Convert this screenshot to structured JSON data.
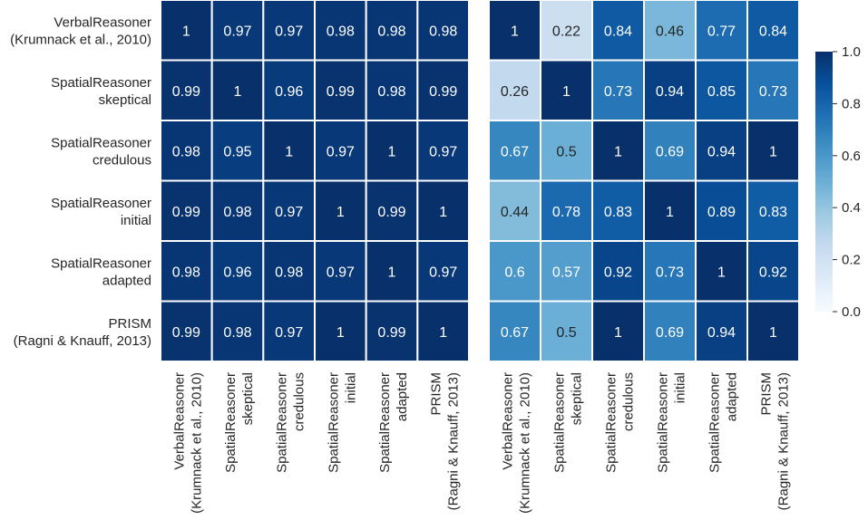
{
  "chart_data": [
    {
      "type": "heatmap",
      "title": "",
      "row_labels": [
        [
          "VerbalReasoner",
          "(Krumnack et al., 2010)"
        ],
        [
          "SpatialReasoner",
          "skeptical"
        ],
        [
          "SpatialReasoner",
          "credulous"
        ],
        [
          "SpatialReasoner",
          "initial"
        ],
        [
          "SpatialReasoner",
          "adapted"
        ],
        [
          "PRISM",
          "(Ragni & Knauff, 2013)"
        ]
      ],
      "col_labels": [
        [
          "VerbalReasoner",
          "(Krumnack et al., 2010)"
        ],
        [
          "SpatialReasoner",
          "skeptical"
        ],
        [
          "SpatialReasoner",
          "credulous"
        ],
        [
          "SpatialReasoner",
          "initial"
        ],
        [
          "SpatialReasoner",
          "adapted"
        ],
        [
          "PRISM",
          "(Ragni & Knauff, 2013)"
        ]
      ],
      "values": [
        [
          1,
          0.97,
          0.97,
          0.98,
          0.98,
          0.98
        ],
        [
          0.99,
          1,
          0.96,
          0.99,
          0.98,
          0.99
        ],
        [
          0.98,
          0.95,
          1,
          0.97,
          1,
          0.97
        ],
        [
          0.99,
          0.98,
          0.97,
          1,
          0.99,
          1
        ],
        [
          0.98,
          0.96,
          0.98,
          0.97,
          1,
          0.97
        ],
        [
          0.99,
          0.98,
          0.97,
          1,
          0.99,
          1
        ]
      ],
      "value_range": [
        0,
        1
      ]
    },
    {
      "type": "heatmap",
      "title": "",
      "row_labels": [],
      "col_labels": [
        [
          "VerbalReasoner",
          "(Krumnack et al., 2010)"
        ],
        [
          "SpatialReasoner",
          "skeptical"
        ],
        [
          "SpatialReasoner",
          "credulous"
        ],
        [
          "SpatialReasoner",
          "initial"
        ],
        [
          "SpatialReasoner",
          "adapted"
        ],
        [
          "PRISM",
          "(Ragni & Knauff, 2013)"
        ]
      ],
      "values": [
        [
          1,
          0.22,
          0.84,
          0.46,
          0.77,
          0.84
        ],
        [
          0.26,
          1,
          0.73,
          0.94,
          0.85,
          0.73
        ],
        [
          0.67,
          0.5,
          1,
          0.69,
          0.94,
          1
        ],
        [
          0.44,
          0.78,
          0.83,
          1,
          0.89,
          0.83
        ],
        [
          0.6,
          0.57,
          0.92,
          0.73,
          1,
          0.92
        ],
        [
          0.67,
          0.5,
          1,
          0.69,
          0.94,
          1
        ]
      ],
      "value_range": [
        0,
        1
      ]
    }
  ],
  "colorbar": {
    "ticks": [
      0.0,
      0.2,
      0.4,
      0.6,
      0.8,
      1.0
    ],
    "tick_labels": [
      "0.0",
      "0.2",
      "0.4",
      "0.6",
      "0.8",
      "1.0"
    ],
    "colormap": "Blues",
    "colors": [
      "#f7fbff",
      "#deebf7",
      "#c6dbef",
      "#9ecae1",
      "#6baed6",
      "#4292c6",
      "#2171b5",
      "#08519c",
      "#08306b"
    ]
  }
}
